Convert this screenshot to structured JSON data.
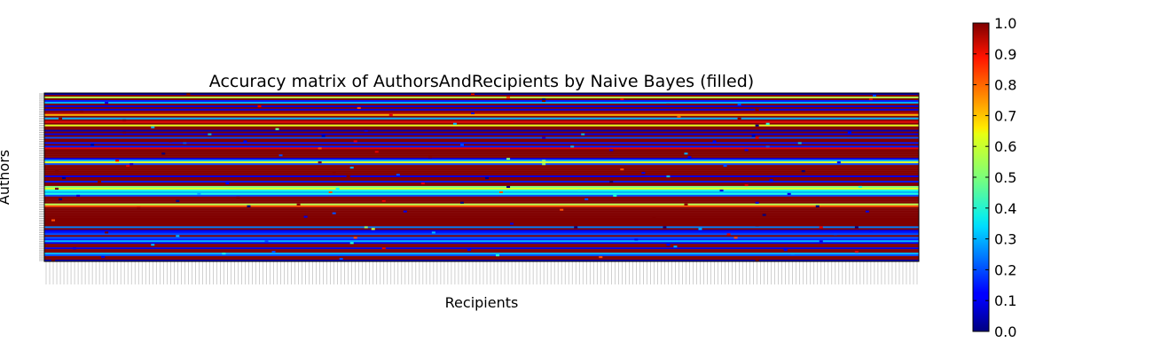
{
  "chart_data": {
    "type": "heatmap",
    "title": "Accuracy matrix of AuthorsAndRecipients by Naive Bayes (filled)",
    "xlabel": "Recipients",
    "ylabel": "Authors",
    "colormap": "jet",
    "vmin": 0.0,
    "vmax": 1.0,
    "colorbar_ticks": [
      "0.0",
      "0.1",
      "0.2",
      "0.3",
      "0.4",
      "0.5",
      "0.6",
      "0.7",
      "0.8",
      "0.9",
      "1.0"
    ],
    "grid": false,
    "n_columns": 246,
    "row_base_values": [
      0.05,
      1.0,
      0.55,
      1.0,
      0.15,
      0.3,
      1.0,
      0.1,
      1.0,
      0.1,
      1.0,
      0.95,
      0.7,
      1.0,
      0.3,
      1.0,
      0.9,
      1.0,
      0.6,
      1.0,
      1.0,
      0.05,
      1.0,
      0.1,
      1.0,
      0.2,
      1.0,
      1.0,
      0.15,
      1.0,
      0.15,
      0.9,
      1.0,
      1.0,
      1.0,
      1.0,
      1.0,
      0.1,
      0.3,
      0.6,
      0.2,
      1.0,
      1.0,
      1.0,
      1.0,
      1.0,
      1.0,
      0.1,
      1.0,
      1.0,
      0.15,
      1.0,
      1.0,
      0.5,
      0.6,
      0.4,
      0.3,
      0.4,
      0.2,
      1.0,
      1.0,
      1.0,
      1.0,
      0.55,
      0.8,
      1.0,
      1.0,
      1.0,
      1.0,
      1.0,
      1.0,
      1.0,
      1.0,
      1.0,
      1.0,
      1.0,
      0.25,
      1.0,
      0.1,
      0.15,
      0.2,
      1.0,
      0.2,
      0.15,
      0.3,
      0.1,
      1.0,
      1.0,
      0.1,
      1.0,
      1.0,
      0.3,
      0.2,
      1.0,
      1.0,
      0.05
    ],
    "outliers": [
      [
        0,
        40,
        1.0
      ],
      [
        0,
        120,
        0.9
      ],
      [
        1,
        233,
        0.2
      ],
      [
        2,
        130,
        0.8
      ],
      [
        3,
        140,
        0.0
      ],
      [
        3,
        162,
        0.9
      ],
      [
        3,
        232,
        0.9
      ],
      [
        4,
        140,
        1.0
      ],
      [
        5,
        17,
        0.1
      ],
      [
        6,
        175,
        1.0
      ],
      [
        6,
        195,
        0.2
      ],
      [
        7,
        60,
        0.9
      ],
      [
        8,
        88,
        0.8
      ],
      [
        9,
        200,
        1.0
      ],
      [
        10,
        10,
        1.0
      ],
      [
        11,
        120,
        0.1
      ],
      [
        12,
        97,
        0.9
      ],
      [
        13,
        178,
        0.8
      ],
      [
        14,
        4,
        1.0
      ],
      [
        14,
        195,
        1.0
      ],
      [
        15,
        22,
        1.0
      ],
      [
        16,
        131,
        0.9
      ],
      [
        17,
        115,
        0.3
      ],
      [
        17,
        203,
        0.4
      ],
      [
        18,
        200,
        0.0
      ],
      [
        19,
        30,
        0.3
      ],
      [
        20,
        65,
        0.5
      ],
      [
        21,
        90,
        0.1
      ],
      [
        22,
        22,
        1.0
      ],
      [
        22,
        226,
        0.1
      ],
      [
        23,
        46,
        0.3
      ],
      [
        23,
        151,
        0.3
      ],
      [
        24,
        78,
        0.0
      ],
      [
        24,
        199,
        0.0
      ],
      [
        25,
        140,
        0.1
      ],
      [
        25,
        200,
        0.9
      ],
      [
        26,
        10,
        1.0
      ],
      [
        27,
        35,
        1.0
      ],
      [
        27,
        56,
        0.1
      ],
      [
        27,
        87,
        0.9
      ],
      [
        27,
        188,
        0.1
      ],
      [
        28,
        39,
        0.2
      ],
      [
        28,
        212,
        0.3
      ],
      [
        29,
        13,
        0.0
      ],
      [
        29,
        117,
        0.2
      ],
      [
        30,
        148,
        0.3
      ],
      [
        30,
        203,
        0.2
      ],
      [
        31,
        77,
        0.8
      ],
      [
        32,
        159,
        0.1
      ],
      [
        32,
        197,
        0.1
      ],
      [
        33,
        93,
        0.9
      ],
      [
        34,
        33,
        0.0
      ],
      [
        34,
        180,
        0.3
      ],
      [
        35,
        66,
        0.2
      ],
      [
        36,
        108,
        1.0
      ],
      [
        36,
        181,
        0.1
      ],
      [
        37,
        130,
        0.5
      ],
      [
        38,
        20,
        0.9
      ],
      [
        38,
        140,
        0.5
      ],
      [
        39,
        77,
        1.0
      ],
      [
        39,
        223,
        0.1
      ],
      [
        40,
        24,
        0.1
      ],
      [
        40,
        140,
        0.5
      ],
      [
        41,
        23,
        0.9
      ],
      [
        41,
        191,
        0.2
      ],
      [
        42,
        86,
        0.3
      ],
      [
        43,
        162,
        0.8
      ],
      [
        44,
        3,
        1.0
      ],
      [
        44,
        213,
        0.0
      ],
      [
        45,
        81,
        1.0
      ],
      [
        45,
        168,
        0.1
      ],
      [
        46,
        99,
        0.2
      ],
      [
        47,
        85,
        1.0
      ],
      [
        47,
        175,
        0.3
      ],
      [
        48,
        5,
        0.0
      ],
      [
        48,
        124,
        0.0
      ],
      [
        49,
        76,
        1.0
      ],
      [
        49,
        204,
        0.1
      ],
      [
        50,
        15,
        1.0
      ],
      [
        50,
        159,
        0.0
      ],
      [
        51,
        51,
        0.1
      ],
      [
        51,
        106,
        0.9
      ],
      [
        52,
        197,
        0.9
      ],
      [
        53,
        130,
        0.0
      ],
      [
        53,
        229,
        0.4
      ],
      [
        54,
        3,
        1.0
      ],
      [
        54,
        82,
        0.4
      ],
      [
        55,
        150,
        0.4
      ],
      [
        55,
        190,
        0.1
      ],
      [
        56,
        80,
        0.8
      ],
      [
        56,
        128,
        0.8
      ],
      [
        57,
        43,
        0.3
      ],
      [
        57,
        209,
        0.1
      ],
      [
        58,
        9,
        0.1
      ],
      [
        58,
        160,
        0.4
      ],
      [
        59,
        54,
        1.0
      ],
      [
        60,
        4,
        0.0
      ],
      [
        60,
        152,
        0.2
      ],
      [
        61,
        37,
        0.0
      ],
      [
        61,
        95,
        0.9
      ],
      [
        62,
        117,
        0.0
      ],
      [
        62,
        200,
        0.1
      ],
      [
        63,
        71,
        1.0
      ],
      [
        63,
        180,
        1.0
      ],
      [
        64,
        57,
        0.0
      ],
      [
        64,
        217,
        0.0
      ],
      [
        65,
        26,
        1.0
      ],
      [
        66,
        145,
        0.8
      ],
      [
        67,
        101,
        0.1
      ],
      [
        67,
        231,
        0.1
      ],
      [
        68,
        81,
        0.2
      ],
      [
        69,
        202,
        0.0
      ],
      [
        70,
        73,
        0.1
      ],
      [
        71,
        171,
        1.0
      ],
      [
        72,
        2,
        0.8
      ],
      [
        73,
        108,
        1.0
      ],
      [
        74,
        131,
        0.1
      ],
      [
        75,
        200,
        1.0
      ],
      [
        76,
        90,
        0.5
      ],
      [
        76,
        174,
        0.0
      ],
      [
        76,
        149,
        0.0
      ],
      [
        76,
        228,
        0.0
      ],
      [
        76,
        218,
        0.9
      ],
      [
        77,
        92,
        0.6
      ],
      [
        77,
        184,
        0.3
      ],
      [
        78,
        232,
        0.1
      ],
      [
        79,
        17,
        1.0
      ],
      [
        79,
        109,
        0.3
      ],
      [
        80,
        192,
        0.9
      ],
      [
        80,
        222,
        0.2
      ],
      [
        81,
        37,
        0.3
      ],
      [
        82,
        87,
        0.8
      ],
      [
        82,
        194,
        0.8
      ],
      [
        83,
        166,
        0.1
      ],
      [
        84,
        62,
        0.2
      ],
      [
        84,
        218,
        0.1
      ],
      [
        85,
        86,
        0.4
      ],
      [
        86,
        30,
        0.3
      ],
      [
        86,
        175,
        0.1
      ],
      [
        87,
        177,
        0.3
      ],
      [
        88,
        8,
        0.1
      ],
      [
        88,
        95,
        0.9
      ],
      [
        89,
        119,
        0.1
      ],
      [
        89,
        208,
        0.1
      ],
      [
        90,
        64,
        0.2
      ],
      [
        90,
        228,
        0.9
      ],
      [
        91,
        50,
        0.4
      ],
      [
        91,
        210,
        0.3
      ],
      [
        92,
        127,
        0.4
      ],
      [
        93,
        16,
        0.1
      ],
      [
        93,
        156,
        0.8
      ],
      [
        94,
        83,
        0.2
      ],
      [
        95,
        2,
        1.0
      ],
      [
        95,
        200,
        1.0
      ]
    ]
  }
}
